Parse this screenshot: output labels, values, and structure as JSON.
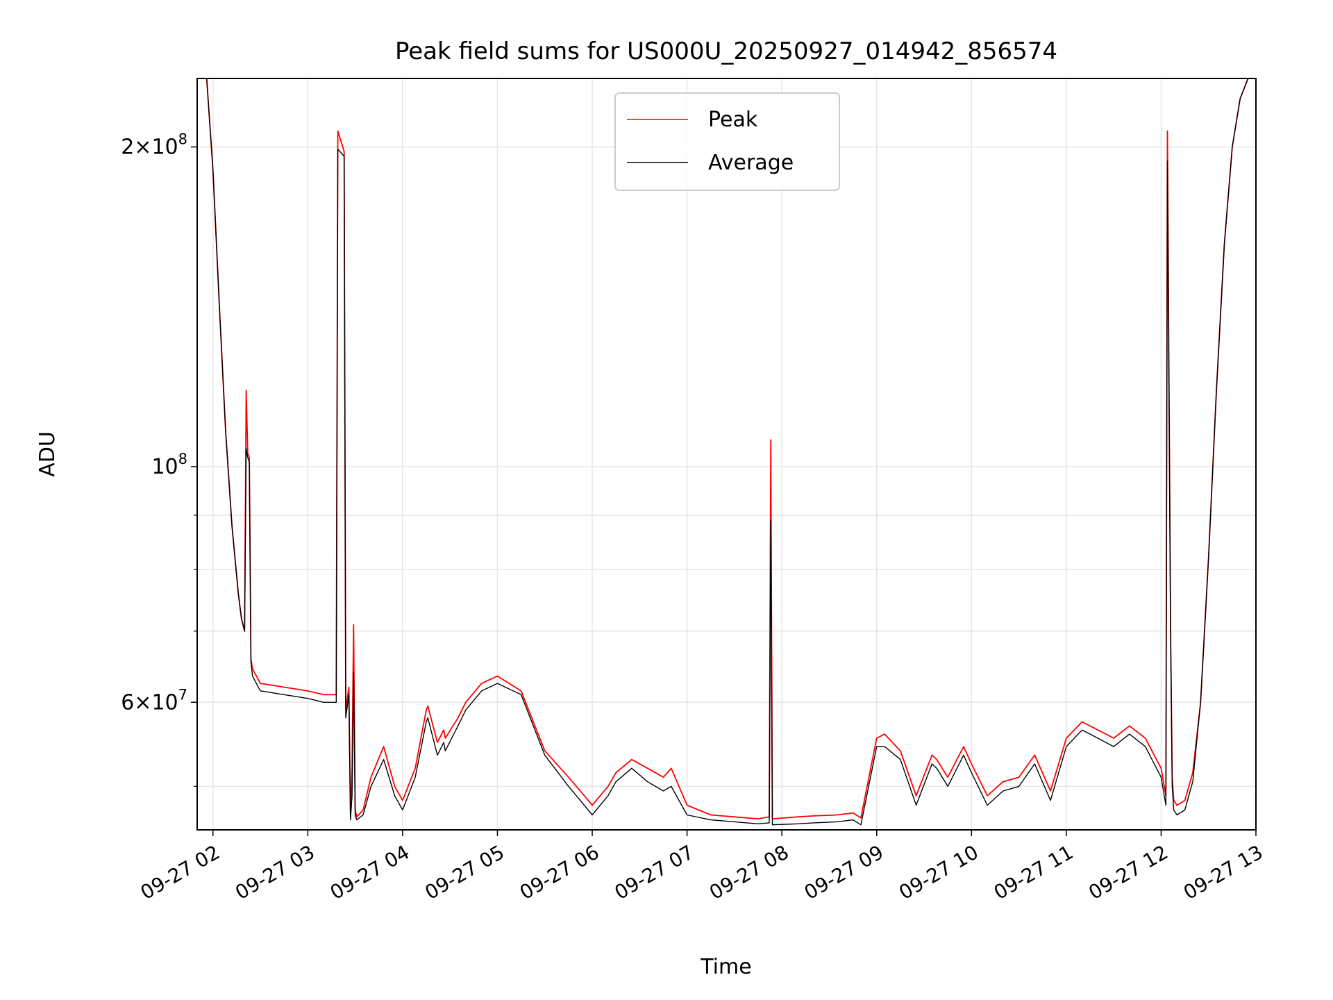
{
  "chart_data": {
    "type": "line",
    "title": "Peak field sums for US000U_20250927_014942_856574",
    "xlabel": "Time",
    "ylabel": "ADU",
    "y_scale": "log",
    "ylim": [
      45500000,
      232000000
    ],
    "xlim": [
      "2025-09-27 01:50",
      "2025-09-27 13:00"
    ],
    "grid": true,
    "legend_position": "top-center",
    "x_ticks": [
      "09-27 02",
      "09-27 03",
      "09-27 04",
      "09-27 05",
      "09-27 06",
      "09-27 07",
      "09-27 08",
      "09-27 09",
      "09-27 10",
      "09-27 11",
      "09-27 12",
      "09-27 13"
    ],
    "y_ticks": [
      {
        "value": 200000000,
        "mantissa": "2",
        "exponent": "8"
      },
      {
        "value": 100000000,
        "mantissa": "",
        "exponent": "8"
      },
      {
        "value": 60000000,
        "mantissa": "6",
        "exponent": "7"
      }
    ],
    "y_minor_ticks": [
      50000000,
      70000000,
      80000000,
      90000000
    ],
    "series": [
      {
        "name": "Peak",
        "color": "#ff0000",
        "x": [
          "2025-09-27 01:50",
          "2025-09-27 01:56",
          "2025-09-27 02:00",
          "2025-09-27 02:04",
          "2025-09-27 02:08",
          "2025-09-27 02:12",
          "2025-09-27 02:16",
          "2025-09-27 02:18",
          "2025-09-27 02:20",
          "2025-09-27 02:21",
          "2025-09-27 02:22",
          "2025-09-27 02:23",
          "2025-09-27 02:24",
          "2025-09-27 02:25",
          "2025-09-27 02:30",
          "2025-09-27 02:45",
          "2025-09-27 03:00",
          "2025-09-27 03:10",
          "2025-09-27 03:18",
          "2025-09-27 03:19",
          "2025-09-27 03:23",
          "2025-09-27 03:24",
          "2025-09-27 03:26",
          "2025-09-27 03:27",
          "2025-09-27 03:28",
          "2025-09-27 03:29",
          "2025-09-27 03:30",
          "2025-09-27 03:31",
          "2025-09-27 03:35",
          "2025-09-27 03:40",
          "2025-09-27 03:48",
          "2025-09-27 03:55",
          "2025-09-27 04:00",
          "2025-09-27 04:08",
          "2025-09-27 04:15",
          "2025-09-27 04:16",
          "2025-09-27 04:22",
          "2025-09-27 04:26",
          "2025-09-27 04:27",
          "2025-09-27 04:35",
          "2025-09-27 04:40",
          "2025-09-27 04:50",
          "2025-09-27 05:00",
          "2025-09-27 05:15",
          "2025-09-27 05:30",
          "2025-09-27 05:45",
          "2025-09-27 05:55",
          "2025-09-27 06:00",
          "2025-09-27 06:10",
          "2025-09-27 06:15",
          "2025-09-27 06:25",
          "2025-09-27 06:35",
          "2025-09-27 06:45",
          "2025-09-27 06:50",
          "2025-09-27 07:00",
          "2025-09-27 07:15",
          "2025-09-27 07:30",
          "2025-09-27 07:45",
          "2025-09-27 07:52",
          "2025-09-27 07:53",
          "2025-09-27 07:54",
          "2025-09-27 08:10",
          "2025-09-27 08:20",
          "2025-09-27 08:35",
          "2025-09-27 08:45",
          "2025-09-27 08:50",
          "2025-09-27 09:00",
          "2025-09-27 09:05",
          "2025-09-27 09:15",
          "2025-09-27 09:25",
          "2025-09-27 09:35",
          "2025-09-27 09:38",
          "2025-09-27 09:45",
          "2025-09-27 09:55",
          "2025-09-27 10:00",
          "2025-09-27 10:10",
          "2025-09-27 10:20",
          "2025-09-27 10:30",
          "2025-09-27 10:40",
          "2025-09-27 10:50",
          "2025-09-27 11:00",
          "2025-09-27 11:10",
          "2025-09-27 11:20",
          "2025-09-27 11:30",
          "2025-09-27 11:40",
          "2025-09-27 11:50",
          "2025-09-27 12:00",
          "2025-09-27 12:03",
          "2025-09-27 12:04",
          "2025-09-27 12:06",
          "2025-09-27 12:07",
          "2025-09-27 12:08",
          "2025-09-27 12:10",
          "2025-09-27 12:15",
          "2025-09-27 12:20",
          "2025-09-27 12:25",
          "2025-09-27 12:30",
          "2025-09-27 12:35",
          "2025-09-27 12:40",
          "2025-09-27 12:45",
          "2025-09-27 12:50",
          "2025-09-27 12:55",
          "2025-09-27 13:00"
        ],
        "y": [
          232000000,
          232000000,
          190000000,
          142000000,
          108000000,
          88000000,
          76000000,
          72000000,
          70000000,
          118000000,
          103000000,
          102000000,
          66000000,
          64500000,
          62500000,
          62000000,
          61500000,
          61000000,
          61000000,
          207000000,
          198000000,
          59000000,
          62000000,
          47000000,
          52000000,
          71000000,
          47500000,
          46800000,
          47500000,
          51000000,
          54500000,
          50000000,
          48500000,
          52000000,
          59000000,
          59500000,
          55000000,
          56500000,
          55500000,
          58000000,
          60000000,
          62500000,
          63500000,
          61500000,
          54000000,
          51000000,
          49000000,
          48000000,
          50000000,
          51500000,
          53000000,
          52000000,
          51000000,
          52000000,
          48000000,
          47000000,
          46800000,
          46600000,
          46800000,
          106000000,
          46600000,
          46800000,
          46900000,
          47000000,
          47200000,
          46700000,
          55500000,
          56000000,
          54000000,
          49000000,
          53500000,
          53000000,
          51000000,
          54500000,
          52500000,
          49000000,
          50500000,
          51000000,
          53500000,
          49500000,
          55500000,
          57500000,
          56500000,
          55500000,
          57000000,
          55500000,
          52000000,
          49000000,
          207000000,
          70000000,
          51000000,
          48500000,
          48000000,
          48500000,
          51500000,
          60000000,
          82000000,
          118000000,
          162000000,
          200000000,
          222000000,
          232000000,
          232000000
        ]
      },
      {
        "name": "Average",
        "color": "#000000",
        "x": [
          "2025-09-27 01:50",
          "2025-09-27 01:56",
          "2025-09-27 02:00",
          "2025-09-27 02:04",
          "2025-09-27 02:08",
          "2025-09-27 02:12",
          "2025-09-27 02:16",
          "2025-09-27 02:18",
          "2025-09-27 02:20",
          "2025-09-27 02:21",
          "2025-09-27 02:22",
          "2025-09-27 02:23",
          "2025-09-27 02:24",
          "2025-09-27 02:25",
          "2025-09-27 02:30",
          "2025-09-27 02:45",
          "2025-09-27 03:00",
          "2025-09-27 03:10",
          "2025-09-27 03:18",
          "2025-09-27 03:19",
          "2025-09-27 03:23",
          "2025-09-27 03:24",
          "2025-09-27 03:26",
          "2025-09-27 03:27",
          "2025-09-27 03:28",
          "2025-09-27 03:29",
          "2025-09-27 03:30",
          "2025-09-27 03:31",
          "2025-09-27 03:35",
          "2025-09-27 03:40",
          "2025-09-27 03:48",
          "2025-09-27 03:55",
          "2025-09-27 04:00",
          "2025-09-27 04:08",
          "2025-09-27 04:15",
          "2025-09-27 04:16",
          "2025-09-27 04:22",
          "2025-09-27 04:26",
          "2025-09-27 04:27",
          "2025-09-27 04:35",
          "2025-09-27 04:40",
          "2025-09-27 04:50",
          "2025-09-27 05:00",
          "2025-09-27 05:15",
          "2025-09-27 05:30",
          "2025-09-27 05:45",
          "2025-09-27 05:55",
          "2025-09-27 06:00",
          "2025-09-27 06:10",
          "2025-09-27 06:15",
          "2025-09-27 06:25",
          "2025-09-27 06:35",
          "2025-09-27 06:45",
          "2025-09-27 06:50",
          "2025-09-27 07:00",
          "2025-09-27 07:15",
          "2025-09-27 07:30",
          "2025-09-27 07:45",
          "2025-09-27 07:52",
          "2025-09-27 07:53",
          "2025-09-27 07:54",
          "2025-09-27 08:10",
          "2025-09-27 08:20",
          "2025-09-27 08:35",
          "2025-09-27 08:45",
          "2025-09-27 08:50",
          "2025-09-27 09:00",
          "2025-09-27 09:05",
          "2025-09-27 09:15",
          "2025-09-27 09:25",
          "2025-09-27 09:35",
          "2025-09-27 09:38",
          "2025-09-27 09:45",
          "2025-09-27 09:55",
          "2025-09-27 10:00",
          "2025-09-27 10:10",
          "2025-09-27 10:20",
          "2025-09-27 10:30",
          "2025-09-27 10:40",
          "2025-09-27 10:50",
          "2025-09-27 11:00",
          "2025-09-27 11:10",
          "2025-09-27 11:20",
          "2025-09-27 11:30",
          "2025-09-27 11:40",
          "2025-09-27 11:50",
          "2025-09-27 12:00",
          "2025-09-27 12:03",
          "2025-09-27 12:04",
          "2025-09-27 12:06",
          "2025-09-27 12:07",
          "2025-09-27 12:08",
          "2025-09-27 12:10",
          "2025-09-27 12:15",
          "2025-09-27 12:20",
          "2025-09-27 12:25",
          "2025-09-27 12:30",
          "2025-09-27 12:35",
          "2025-09-27 12:40",
          "2025-09-27 12:45",
          "2025-09-27 12:50",
          "2025-09-27 12:55",
          "2025-09-27 13:00"
        ],
        "y": [
          232000000,
          232000000,
          190000000,
          142000000,
          108000000,
          88000000,
          76000000,
          72000000,
          70000000,
          104000000,
          102000000,
          101000000,
          65500000,
          63500000,
          61500000,
          61000000,
          60500000,
          60000000,
          60000000,
          199000000,
          196000000,
          58000000,
          61000000,
          46500000,
          49000000,
          64000000,
          47000000,
          46500000,
          47000000,
          50000000,
          53000000,
          49000000,
          47500000,
          51000000,
          57500000,
          58000000,
          53500000,
          55000000,
          54000000,
          57000000,
          59000000,
          61500000,
          62500000,
          61000000,
          53500000,
          50000000,
          48000000,
          47000000,
          49000000,
          50500000,
          52000000,
          50500000,
          49500000,
          50000000,
          47000000,
          46500000,
          46300000,
          46100000,
          46200000,
          89000000,
          46000000,
          46100000,
          46200000,
          46300000,
          46500000,
          46000000,
          54500000,
          54500000,
          53000000,
          48000000,
          52500000,
          52000000,
          50000000,
          53500000,
          51500000,
          48000000,
          49500000,
          50000000,
          52500000,
          48500000,
          54500000,
          56500000,
          55500000,
          54500000,
          56000000,
          54500000,
          51000000,
          48000000,
          194000000,
          69000000,
          50000000,
          47500000,
          47000000,
          47500000,
          50500000,
          60000000,
          82000000,
          118000000,
          162000000,
          200000000,
          222000000,
          232000000,
          232000000
        ]
      }
    ]
  }
}
